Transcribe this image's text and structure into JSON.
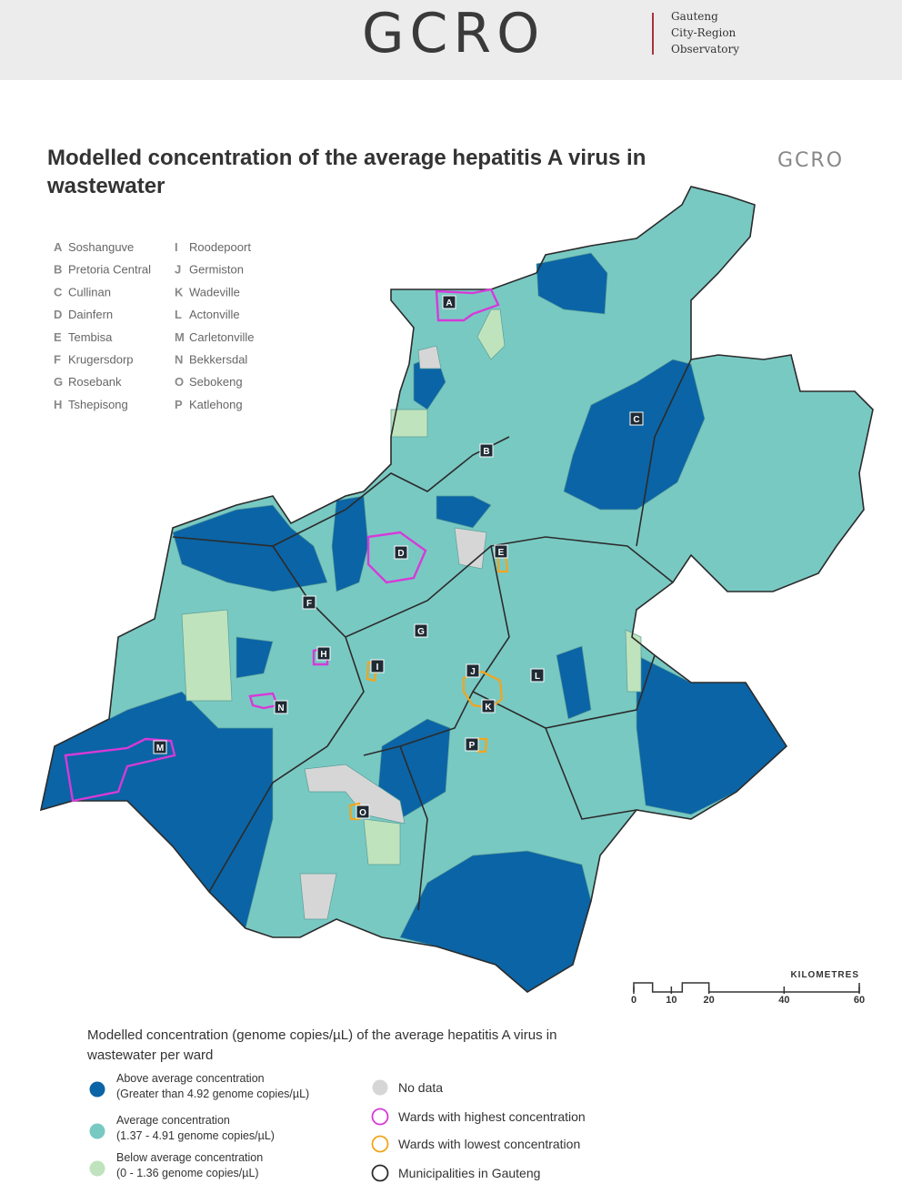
{
  "header": {
    "logo": "GCRO",
    "org_lines": [
      "Gauteng",
      "City-Region",
      "Observatory"
    ]
  },
  "map": {
    "title": "Modelled concentration of the average hepatitis A virus in wastewater",
    "logo": "GCRO",
    "places": [
      {
        "letter": "A",
        "name": "Soshanguve"
      },
      {
        "letter": "B",
        "name": "Pretoria Central"
      },
      {
        "letter": "C",
        "name": "Cullinan"
      },
      {
        "letter": "D",
        "name": "Dainfern"
      },
      {
        "letter": "E",
        "name": "Tembisa"
      },
      {
        "letter": "F",
        "name": "Krugersdorp"
      },
      {
        "letter": "G",
        "name": "Rosebank"
      },
      {
        "letter": "H",
        "name": "Tshepisong"
      },
      {
        "letter": "I",
        "name": "Roodepoort"
      },
      {
        "letter": "J",
        "name": "Germiston"
      },
      {
        "letter": "K",
        "name": "Wadeville"
      },
      {
        "letter": "L",
        "name": "Actonville"
      },
      {
        "letter": "M",
        "name": "Carletonville"
      },
      {
        "letter": "N",
        "name": "Bekkersdal"
      },
      {
        "letter": "O",
        "name": "Sebokeng"
      },
      {
        "letter": "P",
        "name": "Katlehong"
      }
    ],
    "scale": {
      "label": "KILOMETRES",
      "ticks": [
        0,
        10,
        20,
        40,
        60
      ]
    }
  },
  "legend": {
    "title": "Modelled concentration (genome copies/µL) of the average hepatitis A virus in wastewater per ward",
    "items": [
      {
        "label": "Above average concentration",
        "detail": "(Greater than 4.92 genome copies/µL)",
        "color": "#0b64a5",
        "style": "fill"
      },
      {
        "label": "Average concentration",
        "detail": "(1.37 - 4.91 genome copies/µL)",
        "color": "#79c9c3",
        "style": "fill"
      },
      {
        "label": "Below average concentration",
        "detail": "(0 - 1.36 genome copies/µL)",
        "color": "#bfe3bc",
        "style": "fill"
      },
      {
        "label": "No data",
        "color": "#d6d6d6",
        "style": "fill"
      },
      {
        "label": "Wards with highest concentration",
        "color": "#d63ad8",
        "style": "outline"
      },
      {
        "label": "Wards with lowest concentration",
        "color": "#f2a51c",
        "style": "outline"
      },
      {
        "label": "Municipalities in Gauteng",
        "color": "#2b2b2b",
        "style": "outline"
      }
    ]
  }
}
